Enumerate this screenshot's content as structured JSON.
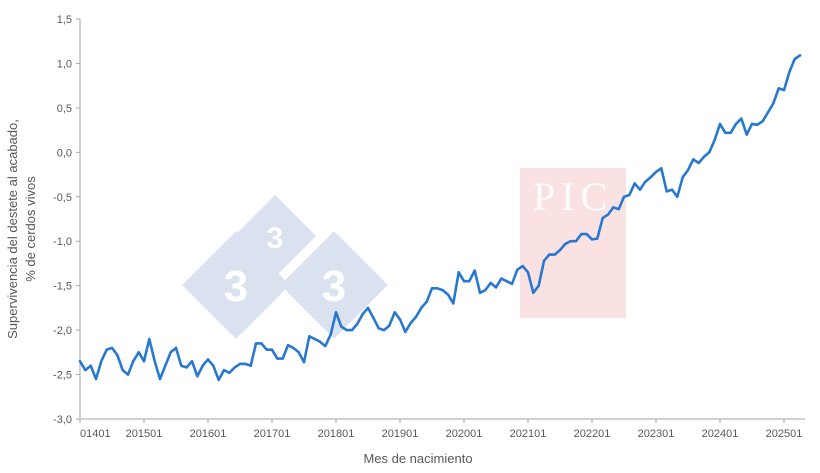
{
  "chart_data": {
    "type": "line",
    "title": "",
    "xlabel": "Mes de nacimiento",
    "ylabel": [
      "Supervivencia del destete al acabado,",
      "% de cerdos vivos"
    ],
    "ylim": [
      -3.0,
      1.5
    ],
    "yticks": [
      -3.0,
      -2.5,
      -2.0,
      -1.5,
      -1.0,
      -0.5,
      0.0,
      0.5,
      1.0,
      1.5
    ],
    "ytick_labels": [
      "-3,0",
      "-2,5",
      "-2,0",
      "-1,5",
      "-1,0",
      "-0,5",
      "0,0",
      "0,5",
      "1,0",
      "1,5"
    ],
    "xticks": [
      "01401",
      "201501",
      "201601",
      "201701",
      "201801",
      "201901",
      "202001",
      "202101",
      "202201",
      "202301",
      "202401",
      "202501"
    ],
    "grid": false,
    "legend": "none",
    "line_color": "#2878d0",
    "series": [
      {
        "x_start": "201401",
        "values": [
          -2.35,
          -2.45,
          -2.4,
          -2.55,
          -2.35,
          -2.22,
          -2.2,
          -2.28,
          -2.45,
          -2.5,
          -2.35,
          -2.25,
          -2.35,
          -2.1,
          -2.35,
          -2.55,
          -2.4,
          -2.25,
          -2.2,
          -2.4,
          -2.42,
          -2.35,
          -2.52,
          -2.4,
          -2.33,
          -2.4,
          -2.56,
          -2.45,
          -2.48,
          -2.42,
          -2.38,
          -2.38,
          -2.4,
          -2.15,
          -2.15,
          -2.22,
          -2.22,
          -2.32,
          -2.32,
          -2.17,
          -2.2,
          -2.25,
          -2.36,
          -2.07,
          -2.1,
          -2.13,
          -2.18,
          -2.05,
          -1.8,
          -1.96,
          -2.0,
          -2.0,
          -1.93,
          -1.82,
          -1.75,
          -1.86,
          -1.98,
          -2.0,
          -1.95,
          -1.8,
          -1.88,
          -2.02,
          -1.92,
          -1.85,
          -1.75,
          -1.68,
          -1.53,
          -1.53,
          -1.55,
          -1.6,
          -1.7,
          -1.35,
          -1.45,
          -1.45,
          -1.33,
          -1.58,
          -1.55,
          -1.47,
          -1.52,
          -1.42,
          -1.45,
          -1.48,
          -1.32,
          -1.28,
          -1.35,
          -1.58,
          -1.5,
          -1.22,
          -1.15,
          -1.15,
          -1.1,
          -1.03,
          -1.0,
          -1.0,
          -0.92,
          -0.92,
          -0.98,
          -0.97,
          -0.74,
          -0.7,
          -0.62,
          -0.64,
          -0.5,
          -0.48,
          -0.35,
          -0.42,
          -0.33,
          -0.28,
          -0.22,
          -0.18,
          -0.44,
          -0.42,
          -0.5,
          -0.28,
          -0.2,
          -0.08,
          -0.12,
          -0.05,
          0.0,
          0.14,
          0.32,
          0.22,
          0.22,
          0.32,
          0.38,
          0.2,
          0.32,
          0.31,
          0.35,
          0.45,
          0.55,
          0.72,
          0.7,
          0.9,
          1.05,
          1.09
        ]
      }
    ]
  },
  "watermarks": {
    "logo_digits": [
      "3",
      "3",
      "3"
    ],
    "pic_text": "PIC"
  }
}
